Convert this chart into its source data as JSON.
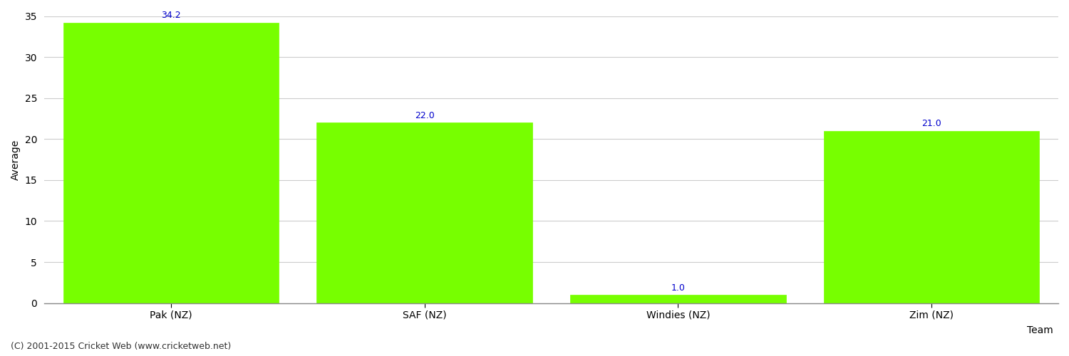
{
  "categories": [
    "Pak (NZ)",
    "SAF (NZ)",
    "Windies (NZ)",
    "Zim (NZ)"
  ],
  "values": [
    34.2,
    22.0,
    1.0,
    21.0
  ],
  "bar_color": "#77ff00",
  "bar_edge_color": "#77ff00",
  "label_color": "#0000cc",
  "ylabel": "Average",
  "xlabel": "Team",
  "ylim": [
    0,
    35
  ],
  "yticks": [
    0,
    5,
    10,
    15,
    20,
    25,
    30,
    35
  ],
  "grid_color": "#cccccc",
  "background_color": "#ffffff",
  "footer": "(C) 2001-2015 Cricket Web (www.cricketweb.net)",
  "label_fontsize": 9,
  "axis_label_fontsize": 10,
  "tick_fontsize": 10,
  "footer_fontsize": 9,
  "bar_width": 0.85
}
